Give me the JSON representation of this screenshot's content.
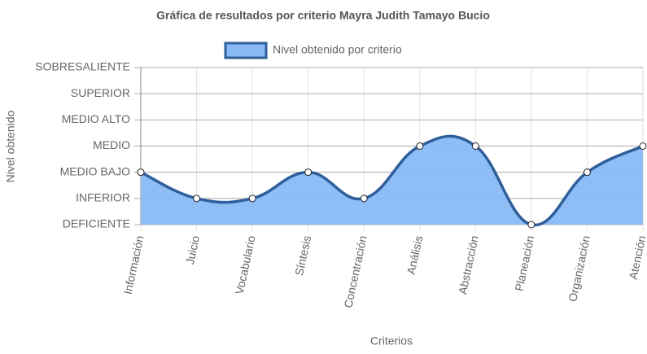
{
  "chart_data": {
    "type": "line",
    "title": "Gráfica de resultados por criterio Mayra Judith Tamayo Bucio",
    "x_label": "Criterios",
    "y_label": "Nivel obtenido",
    "categories": [
      "Información",
      "Juicio",
      "Vocabulario",
      "Síntesis",
      "Concentración",
      "Análisis",
      "Abstracción",
      "Planeación",
      "Organización",
      "Atención"
    ],
    "series": [
      {
        "name": "Nivel obtenido por criterio",
        "color": "#2f5f9a",
        "fill_color": "#89b9f5",
        "values": [
          3,
          2,
          2,
          3,
          2,
          4,
          4,
          1,
          3,
          4
        ]
      }
    ],
    "ylim": [
      1,
      7
    ],
    "yticks": [
      {
        "value": 1,
        "label": "DEFICIENTE"
      },
      {
        "value": 2,
        "label": "INFERIOR"
      },
      {
        "value": 3,
        "label": "MEDIO BAJO"
      },
      {
        "value": 4,
        "label": "MEDIO"
      },
      {
        "value": 5,
        "label": "MEDIO ALTO"
      },
      {
        "value": 6,
        "label": "SUPERIOR"
      },
      {
        "value": 7,
        "label": "SOBRESALIENTE"
      }
    ],
    "grid": true,
    "legend": "top"
  }
}
